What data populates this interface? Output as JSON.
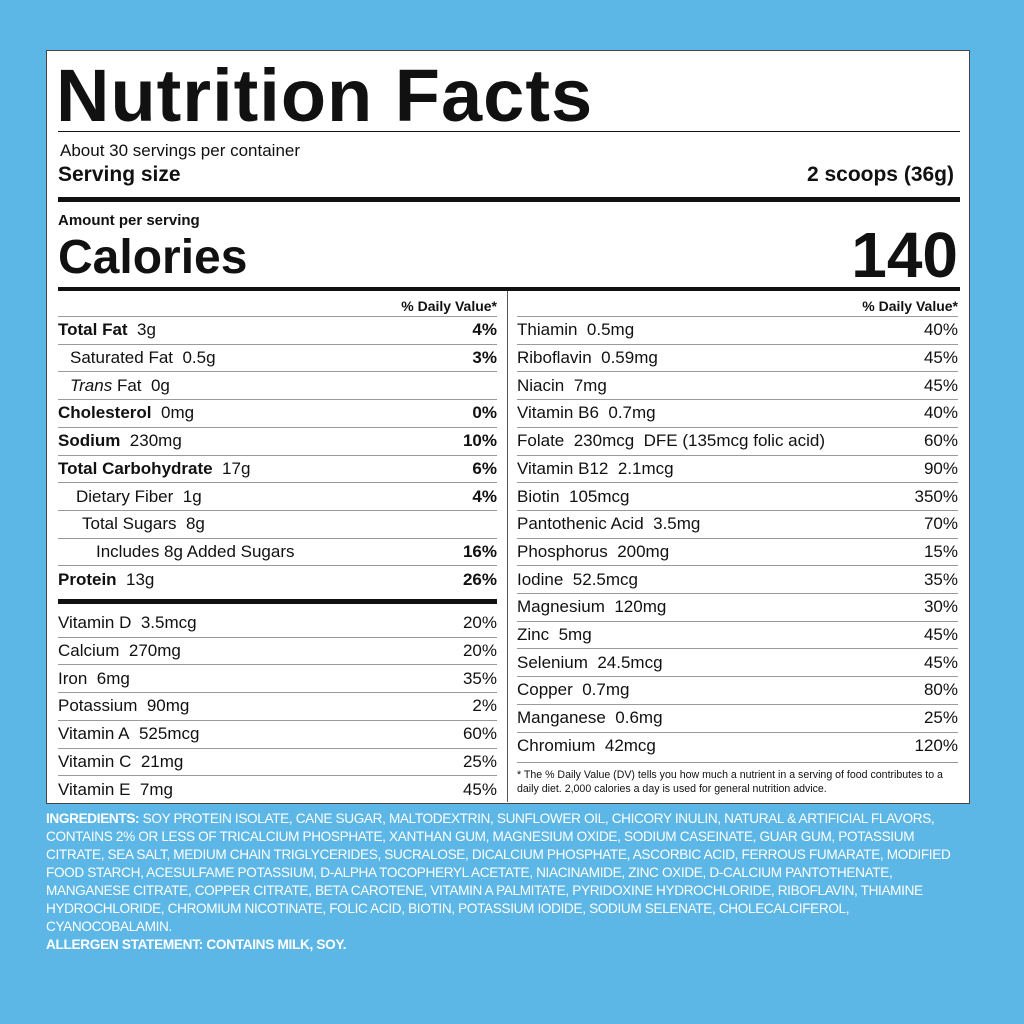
{
  "title": "Nutrition Facts",
  "servings": "About 30 servings per container",
  "serving_size": {
    "label": "Serving size",
    "value": "2 scoops (36g)"
  },
  "amount_per_serving": "Amount per serving",
  "calories": {
    "label": "Calories",
    "value": "140"
  },
  "dv_header": "% Daily Value*",
  "macros": [
    {
      "name": "Total Fat",
      "amount": "3g",
      "dv": "4%"
    },
    {
      "name": "Saturated Fat",
      "amount": "0.5g",
      "dv": "3%"
    },
    {
      "prefix": "Trans",
      "name": "Fat",
      "amount": "0g"
    },
    {
      "name": "Cholesterol",
      "amount": "0mg",
      "dv": "0%"
    },
    {
      "name": "Sodium",
      "amount": "230mg",
      "dv": "10%"
    },
    {
      "name": "Total Carbohydrate",
      "amount": "17g",
      "dv": "6%"
    },
    {
      "name": "Dietary Fiber",
      "amount": "1g",
      "dv": "4%"
    },
    {
      "name": "Total Sugars",
      "amount": "8g"
    },
    {
      "name": "Includes 8g Added Sugars",
      "dv": "16%"
    },
    {
      "name": "Protein",
      "amount": "13g",
      "dv": "26%"
    }
  ],
  "vitamins_left": [
    {
      "name": "Vitamin D",
      "amount": "3.5mcg",
      "dv": "20%"
    },
    {
      "name": "Calcium",
      "amount": "270mg",
      "dv": "20%"
    },
    {
      "name": "Iron",
      "amount": "6mg",
      "dv": "35%"
    },
    {
      "name": "Potassium",
      "amount": "90mg",
      "dv": "2%"
    },
    {
      "name": "Vitamin A",
      "amount": "525mcg",
      "dv": "60%"
    },
    {
      "name": "Vitamin C",
      "amount": "21mg",
      "dv": "25%"
    },
    {
      "name": "Vitamin E",
      "amount": "7mg",
      "dv": "45%"
    }
  ],
  "vitamins_right": [
    {
      "name": "Thiamin",
      "amount": "0.5mg",
      "dv": "40%"
    },
    {
      "name": "Riboflavin",
      "amount": "0.59mg",
      "dv": "45%"
    },
    {
      "name": "Niacin",
      "amount": "7mg",
      "dv": "45%"
    },
    {
      "name": "Vitamin B6",
      "amount": "0.7mg",
      "dv": "40%"
    },
    {
      "name": "Folate",
      "amount": "230mcg  DFE (135mcg folic acid)",
      "dv": "60%"
    },
    {
      "name": "Vitamin B12",
      "amount": "2.1mcg",
      "dv": "90%"
    },
    {
      "name": "Biotin",
      "amount": "105mcg",
      "dv": "350%"
    },
    {
      "name": "Pantothenic Acid",
      "amount": "3.5mg",
      "dv": "70%"
    },
    {
      "name": "Phosphorus",
      "amount": "200mg",
      "dv": "15%"
    },
    {
      "name": "Iodine",
      "amount": "52.5mcg",
      "dv": "35%"
    },
    {
      "name": "Magnesium",
      "amount": "120mg",
      "dv": "30%"
    },
    {
      "name": "Zinc",
      "amount": "5mg",
      "dv": "45%"
    },
    {
      "name": "Selenium",
      "amount": "24.5mcg",
      "dv": "45%"
    },
    {
      "name": "Copper",
      "amount": "0.7mg",
      "dv": "80%"
    },
    {
      "name": "Manganese",
      "amount": "0.6mg",
      "dv": "25%"
    },
    {
      "name": "Chromium",
      "amount": "42mcg",
      "dv": "120%"
    }
  ],
  "footnote": "* The % Daily Value (DV) tells you how much a nutrient in a serving of food contributes to a daily diet. 2,000 calories a day is used for general nutrition advice.",
  "ingredients": {
    "label": "INGREDIENTS:",
    "text": "SOY PROTEIN ISOLATE, CANE SUGAR, MALTODEXTRIN, SUNFLOWER OIL, CHICORY INULIN, NATURAL & ARTIFICIAL FLAVORS, CONTAINS 2% OR LESS OF TRICALCIUM PHOSPHATE, XANTHAN GUM, MAGNESIUM OXIDE, SODIUM CASEINATE, GUAR GUM, POTASSIUM CITRATE, SEA SALT, MEDIUM CHAIN TRIGLYCERIDES, SUCRALOSE, DICALCIUM PHOSPHATE, ASCORBIC ACID, FERROUS FUMARATE, MODIFIED FOOD STARCH, ACESULFAME POTASSIUM, D-ALPHA TOCOPHERYL ACETATE, NIACINAMIDE, ZINC OXIDE, D-CALCIUM PANTOTHENATE, MANGANESE CITRATE, COPPER CITRATE, BETA CAROTENE, VITAMIN A PALMITATE, PYRIDOXINE HYDROCHLORIDE, RIBOFLAVIN, THIAMINE HYDROCHLORIDE, CHROMIUM NICOTINATE, FOLIC ACID, BIOTIN, POTASSIUM IODIDE, SODIUM SELENATE, CHOLECALCIFEROL, CYANOCOBALAMIN."
  },
  "allergen": "ALLERGEN STATEMENT: CONTAINS MILK, SOY."
}
